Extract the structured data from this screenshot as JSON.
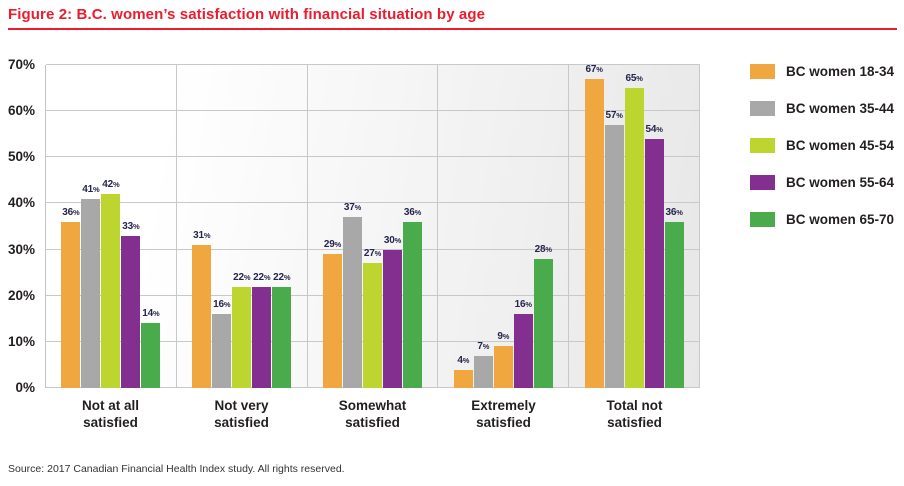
{
  "title": "Figure 2: B.C. women’s satisfaction with financial situation by age",
  "source": "Source: 2017 Canadian Financial Health Index study. All rights reserved.",
  "colors": {
    "title_red": "#EC1B2D",
    "axis_text": "#231F20",
    "bar_label": "#24254C",
    "gridline": "#C8C8C8"
  },
  "chart_data": {
    "type": "bar",
    "title": "Figure 2: B.C. women’s satisfaction with financial situation by age",
    "categories": [
      {
        "line1": "Not at all",
        "line2": "satisfied"
      },
      {
        "line1": "Not very",
        "line2": "satisfied"
      },
      {
        "line1": "Somewhat",
        "line2": "satisfied"
      },
      {
        "line1": "Extremely",
        "line2": "satisfied"
      },
      {
        "line1": "Total not",
        "line2": "satisfied"
      }
    ],
    "series": [
      {
        "name": "BC women 18-34",
        "color": "#F0A740",
        "values": [
          36,
          31,
          29,
          4,
          67
        ]
      },
      {
        "name": "BC women 35-44",
        "color": "#A8A8A8",
        "values": [
          41,
          16,
          37,
          7,
          57
        ]
      },
      {
        "name": "BC women 45-54",
        "color": "#BCD62F",
        "values": [
          42,
          22,
          27,
          9,
          65
        ]
      },
      {
        "name": "BC women 55-64",
        "color": "#832F90",
        "values": [
          33,
          22,
          30,
          16,
          54
        ]
      },
      {
        "name": "BC women 65-70",
        "color": "#4AAB4C",
        "values": [
          14,
          22,
          36,
          28,
          36
        ]
      }
    ],
    "bar_color_overrides": [
      {
        "category_index": 3,
        "series_index": 2,
        "color": "#F0A740"
      }
    ],
    "ylim": [
      0,
      70
    ],
    "ytick_step": 10,
    "ytick_labels": [
      "0%",
      "10%",
      "20%",
      "30%",
      "40%",
      "50%",
      "60%",
      "70%"
    ],
    "value_suffix": "%",
    "grid": true,
    "legend_position": "right"
  }
}
